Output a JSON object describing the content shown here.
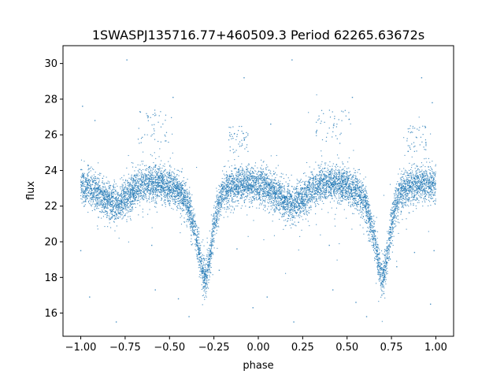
{
  "chart_data": {
    "type": "scatter",
    "title": "1SWASPJ135716.77+460509.3 Period 62265.63672s",
    "xlabel": "phase",
    "ylabel": "flux",
    "xlim": [
      -1.1,
      1.1
    ],
    "ylim": [
      14.7,
      31.0
    ],
    "grid": false,
    "legend": "none",
    "x_ticks": [
      -1.0,
      -0.75,
      -0.5,
      -0.25,
      0.0,
      0.25,
      0.5,
      0.75,
      1.0
    ],
    "x_tick_labels": [
      "−1.00",
      "−0.75",
      "−0.50",
      "−0.25",
      "0.00",
      "0.25",
      "0.50",
      "0.75",
      "1.00"
    ],
    "y_ticks": [
      16,
      18,
      20,
      22,
      24,
      26,
      28,
      30
    ],
    "y_tick_labels": [
      "16",
      "18",
      "20",
      "22",
      "24",
      "26",
      "28",
      "30"
    ],
    "marker_color": "#1f77b4",
    "light_curve": {
      "x": [
        -1.0,
        -0.95,
        -0.9,
        -0.85,
        -0.8,
        -0.75,
        -0.7,
        -0.65,
        -0.6,
        -0.55,
        -0.5,
        -0.45,
        -0.4,
        -0.375,
        -0.35,
        -0.33,
        -0.31,
        -0.3,
        -0.29,
        -0.27,
        -0.25,
        -0.225,
        -0.2,
        -0.15,
        -0.1,
        -0.05,
        0.0,
        0.05,
        0.1,
        0.15,
        0.2,
        0.25,
        0.3,
        0.35,
        0.4,
        0.45,
        0.5,
        0.55,
        0.6,
        0.625,
        0.65,
        0.67,
        0.69,
        0.7,
        0.71,
        0.73,
        0.75,
        0.775,
        0.8,
        0.85,
        0.9,
        0.95,
        1.0
      ],
      "y": [
        23.2,
        23.0,
        22.7,
        22.3,
        22.1,
        22.4,
        22.9,
        23.2,
        23.3,
        23.3,
        23.1,
        22.8,
        22.2,
        21.3,
        20.3,
        19.2,
        18.2,
        17.9,
        18.2,
        19.3,
        21.0,
        22.1,
        22.8,
        23.1,
        23.2,
        23.3,
        23.2,
        23.0,
        22.7,
        22.3,
        22.1,
        22.4,
        22.9,
        23.2,
        23.3,
        23.3,
        23.1,
        22.8,
        22.2,
        21.3,
        20.3,
        19.2,
        18.2,
        17.9,
        18.2,
        19.3,
        21.0,
        22.1,
        22.8,
        23.1,
        23.2,
        23.3,
        23.2
      ],
      "scatter_std": 0.5,
      "n_points": 9000
    },
    "high_clusters": [
      {
        "x_range": [
          -0.68,
          -0.48
        ],
        "y_range": [
          25.5,
          27.4
        ]
      },
      {
        "x_range": [
          0.32,
          0.52
        ],
        "y_range": [
          25.5,
          27.4
        ]
      },
      {
        "x_range": [
          -0.17,
          -0.05
        ],
        "y_range": [
          25.0,
          26.5
        ]
      },
      {
        "x_range": [
          0.83,
          0.95
        ],
        "y_range": [
          25.0,
          26.5
        ]
      }
    ],
    "outliers": [
      {
        "x": -0.74,
        "y": 30.2
      },
      {
        "x": 0.19,
        "y": 30.2
      },
      {
        "x": -0.08,
        "y": 29.2
      },
      {
        "x": 0.92,
        "y": 29.2
      },
      {
        "x": -0.48,
        "y": 28.1
      },
      {
        "x": 0.53,
        "y": 28.1
      },
      {
        "x": -0.99,
        "y": 27.6
      },
      {
        "x": 0.98,
        "y": 27.8
      },
      {
        "x": -0.92,
        "y": 26.8
      },
      {
        "x": 0.07,
        "y": 26.6
      },
      {
        "x": -1.0,
        "y": 19.5
      },
      {
        "x": 0.99,
        "y": 19.5
      },
      {
        "x": -0.95,
        "y": 16.9
      },
      {
        "x": 0.05,
        "y": 16.9
      },
      {
        "x": -0.8,
        "y": 15.5
      },
      {
        "x": 0.2,
        "y": 15.5
      },
      {
        "x": -0.58,
        "y": 17.3
      },
      {
        "x": 0.42,
        "y": 17.3
      },
      {
        "x": -0.39,
        "y": 15.8
      },
      {
        "x": 0.61,
        "y": 15.8
      },
      {
        "x": 0.97,
        "y": 16.5
      },
      {
        "x": -0.03,
        "y": 16.3
      },
      {
        "x": -0.6,
        "y": 19.8
      },
      {
        "x": 0.4,
        "y": 19.8
      },
      {
        "x": -0.12,
        "y": 19.6
      },
      {
        "x": 0.88,
        "y": 19.4
      },
      {
        "x": -0.45,
        "y": 16.8
      },
      {
        "x": 0.55,
        "y": 16.6
      },
      {
        "x": -0.22,
        "y": 18.4
      },
      {
        "x": 0.78,
        "y": 18.6
      }
    ]
  }
}
